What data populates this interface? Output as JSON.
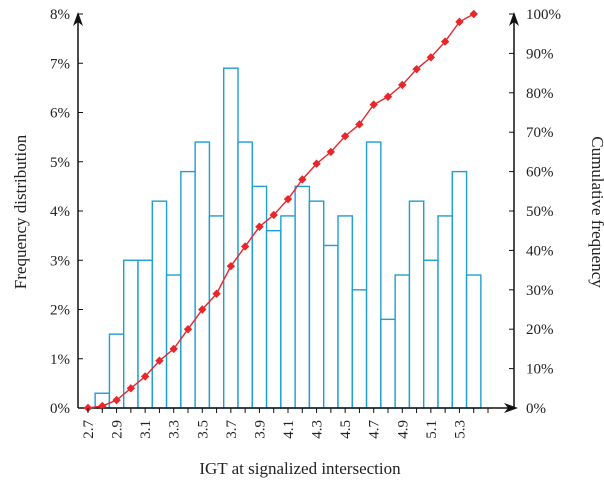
{
  "chart_data": {
    "type": "bar",
    "xlabel": "IGT at signalized intersection",
    "ylabel": "Frequency distribution",
    "ylabel_right": "Cumulative frequency",
    "ylim": [
      0,
      8
    ],
    "ylim_right": [
      0,
      100
    ],
    "xlim": [
      2.7,
      5.5
    ],
    "x_tick_labels": [
      "2.7",
      "2.9",
      "3.1",
      "3.3",
      "3.5",
      "3.7",
      "3.9",
      "4.1",
      "4.3",
      "4.5",
      "4.7",
      "4.9",
      "5.1",
      "5.3"
    ],
    "y_tick_labels": [
      "0%",
      "1%",
      "2%",
      "3%",
      "4%",
      "5%",
      "6%",
      "7%",
      "8%"
    ],
    "y_right_tick_labels": [
      "0%",
      "10%",
      "20%",
      "30%",
      "40%",
      "50%",
      "60%",
      "70%",
      "80%",
      "90%",
      "100%"
    ],
    "bar_color": "#1f9fd1",
    "line_color": "#e8262c",
    "grid": false,
    "series": [
      {
        "type": "bar",
        "x": [
          2.8,
          2.9,
          3.0,
          3.1,
          3.2,
          3.3,
          3.4,
          3.5,
          3.6,
          3.7,
          3.8,
          3.9,
          4.0,
          4.1,
          4.2,
          4.3,
          4.4,
          4.5,
          4.6,
          4.7,
          4.8,
          4.9,
          5.0,
          5.1,
          5.2,
          5.3,
          5.4
        ],
        "values": [
          0.3,
          1.5,
          3.0,
          3.0,
          4.2,
          2.7,
          4.8,
          5.4,
          3.9,
          6.9,
          5.4,
          4.5,
          3.6,
          3.9,
          4.5,
          4.2,
          3.3,
          3.9,
          2.4,
          5.4,
          1.8,
          2.7,
          4.2,
          3.0,
          3.9,
          4.8,
          2.7
        ]
      },
      {
        "type": "line",
        "x": [
          2.7,
          2.8,
          2.9,
          3.0,
          3.1,
          3.2,
          3.3,
          3.4,
          3.5,
          3.6,
          3.7,
          3.8,
          3.9,
          4.0,
          4.1,
          4.2,
          4.3,
          4.4,
          4.5,
          4.6,
          4.7,
          4.8,
          4.9,
          5.0,
          5.1,
          5.2,
          5.3,
          5.4
        ],
        "values": [
          0,
          0.5,
          2,
          5,
          8,
          12,
          15,
          20,
          25,
          29,
          36,
          41,
          46,
          49,
          53,
          58,
          62,
          65,
          69,
          72,
          77,
          79,
          82,
          86,
          89,
          93,
          98,
          100
        ]
      }
    ]
  }
}
